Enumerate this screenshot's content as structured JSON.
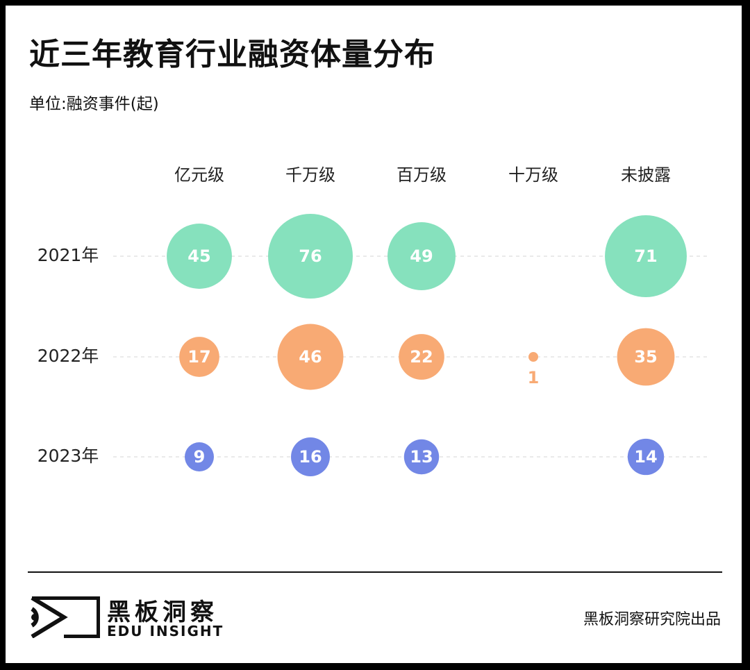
{
  "title": "近三年教育行业融资体量分布",
  "unit_label": "单位:融资事件(起)",
  "chart_data": {
    "type": "bubble",
    "title": "近三年教育行业融资体量分布",
    "unit": "单位:融资事件(起)",
    "categories": [
      "亿元级",
      "千万级",
      "百万级",
      "十万级",
      "未披露"
    ],
    "series": [
      {
        "name": "2021年",
        "color": "#86e1bd",
        "values": [
          45,
          76,
          49,
          null,
          71
        ]
      },
      {
        "name": "2022年",
        "color": "#f8aa74",
        "values": [
          17,
          46,
          22,
          1,
          35
        ]
      },
      {
        "name": "2023年",
        "color": "#7287e6",
        "values": [
          9,
          16,
          13,
          null,
          14
        ]
      }
    ],
    "gridlines": "dashed horizontal per year"
  },
  "footer": {
    "brand_cn": "黑板洞察",
    "brand_en": "EDU INSIGHT",
    "credit": "黑板洞察研究院出品"
  }
}
